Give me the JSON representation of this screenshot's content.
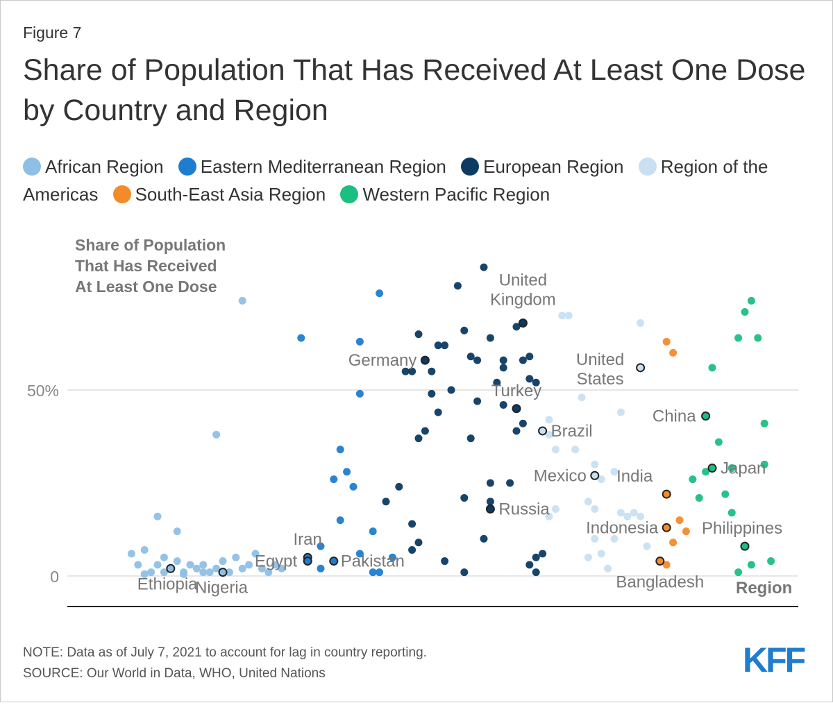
{
  "figure_label": "Figure 7",
  "title": "Share of Population That Has Received At Least One Dose by Country and Region",
  "legend": [
    {
      "label": "African Region",
      "color": "#8ec0e6"
    },
    {
      "label": "Eastern Mediterranean Region",
      "color": "#1f7dd0"
    },
    {
      "label": "European Region",
      "color": "#0d3a61"
    },
    {
      "label": "Region of the Americas",
      "color": "#c8e0f2"
    },
    {
      "label": "South-East Asia Region",
      "color": "#f38b2b"
    },
    {
      "label": "Western Pacific Region",
      "color": "#1bbf82"
    }
  ],
  "note": "NOTE: Data as of July 7, 2021 to account for lag in country reporting.",
  "source": "SOURCE: Our World in Data, WHO, United Nations",
  "logo": "KFF",
  "chart_data": {
    "type": "scatter",
    "title": "Share of Population That Has Received At Least One Dose by Country and Region",
    "ylabel": "Share of Population That Has Received At Least One Dose",
    "xlabel": "Region",
    "ylim": [
      0,
      85
    ],
    "xlim": [
      0,
      100
    ],
    "yticks": [
      {
        "value": 0,
        "label": "0"
      },
      {
        "value": 50,
        "label": "50%"
      }
    ],
    "series": [
      {
        "name": "African Region",
        "color": "#8ec0e6",
        "points": [
          {
            "x": 18,
            "y": 74
          },
          {
            "x": 14,
            "y": 38
          },
          {
            "x": 5,
            "y": 16
          },
          {
            "x": 8,
            "y": 12
          },
          {
            "x": 1,
            "y": 6
          },
          {
            "x": 2,
            "y": 3
          },
          {
            "x": 3,
            "y": 7
          },
          {
            "x": 4,
            "y": 1
          },
          {
            "x": 5,
            "y": 3
          },
          {
            "x": 6,
            "y": 5
          },
          {
            "x": 7,
            "y": 2
          },
          {
            "x": 8,
            "y": 4
          },
          {
            "x": 9,
            "y": 1
          },
          {
            "x": 10,
            "y": 3
          },
          {
            "x": 11,
            "y": 2
          },
          {
            "x": 12,
            "y": 3
          },
          {
            "x": 13,
            "y": 1
          },
          {
            "x": 14,
            "y": 2
          },
          {
            "x": 15,
            "y": 4
          },
          {
            "x": 16,
            "y": 1
          },
          {
            "x": 17,
            "y": 5
          },
          {
            "x": 18,
            "y": 2
          },
          {
            "x": 19,
            "y": 3
          },
          {
            "x": 20,
            "y": 6
          },
          {
            "x": 21,
            "y": 2
          },
          {
            "x": 22,
            "y": 1
          },
          {
            "x": 23,
            "y": 3
          },
          {
            "x": 24,
            "y": 2
          },
          {
            "x": 3,
            "y": 0.5
          },
          {
            "x": 9,
            "y": 0.5
          },
          {
            "x": 12,
            "y": 1
          },
          {
            "x": 6,
            "y": 1
          }
        ]
      },
      {
        "name": "Eastern Mediterranean Region",
        "color": "#1f7dd0",
        "points": [
          {
            "x": 39,
            "y": 76
          },
          {
            "x": 27,
            "y": 64
          },
          {
            "x": 36,
            "y": 63
          },
          {
            "x": 36,
            "y": 49
          },
          {
            "x": 33,
            "y": 34
          },
          {
            "x": 34,
            "y": 28
          },
          {
            "x": 32,
            "y": 26
          },
          {
            "x": 35,
            "y": 24
          },
          {
            "x": 33,
            "y": 15
          },
          {
            "x": 38,
            "y": 12
          },
          {
            "x": 30,
            "y": 8
          },
          {
            "x": 36,
            "y": 6
          },
          {
            "x": 41,
            "y": 5
          },
          {
            "x": 30,
            "y": 2
          },
          {
            "x": 38,
            "y": 1
          },
          {
            "x": 39,
            "y": 1
          }
        ]
      },
      {
        "name": "European Region",
        "color": "#0d3a61",
        "points": [
          {
            "x": 55,
            "y": 83
          },
          {
            "x": 51,
            "y": 78
          },
          {
            "x": 45,
            "y": 65
          },
          {
            "x": 48,
            "y": 62
          },
          {
            "x": 49,
            "y": 62
          },
          {
            "x": 52,
            "y": 66
          },
          {
            "x": 53,
            "y": 59
          },
          {
            "x": 54,
            "y": 58
          },
          {
            "x": 56,
            "y": 64
          },
          {
            "x": 58,
            "y": 58
          },
          {
            "x": 60,
            "y": 67
          },
          {
            "x": 61,
            "y": 58
          },
          {
            "x": 62,
            "y": 59
          },
          {
            "x": 58,
            "y": 56
          },
          {
            "x": 57,
            "y": 52
          },
          {
            "x": 62,
            "y": 53
          },
          {
            "x": 63,
            "y": 52
          },
          {
            "x": 43,
            "y": 55
          },
          {
            "x": 44,
            "y": 55
          },
          {
            "x": 47,
            "y": 55
          },
          {
            "x": 50,
            "y": 50
          },
          {
            "x": 47,
            "y": 49
          },
          {
            "x": 54,
            "y": 47
          },
          {
            "x": 58,
            "y": 46
          },
          {
            "x": 48,
            "y": 44
          },
          {
            "x": 46,
            "y": 39
          },
          {
            "x": 45,
            "y": 37
          },
          {
            "x": 53,
            "y": 37
          },
          {
            "x": 61,
            "y": 41
          },
          {
            "x": 60,
            "y": 39
          },
          {
            "x": 56,
            "y": 25
          },
          {
            "x": 59,
            "y": 25
          },
          {
            "x": 42,
            "y": 24
          },
          {
            "x": 40,
            "y": 20
          },
          {
            "x": 52,
            "y": 21
          },
          {
            "x": 56,
            "y": 20
          },
          {
            "x": 44,
            "y": 14
          },
          {
            "x": 45,
            "y": 9
          },
          {
            "x": 44,
            "y": 7
          },
          {
            "x": 55,
            "y": 10
          },
          {
            "x": 49,
            "y": 4
          },
          {
            "x": 52,
            "y": 1
          },
          {
            "x": 62,
            "y": 3
          },
          {
            "x": 64,
            "y": 6
          },
          {
            "x": 63,
            "y": 5
          },
          {
            "x": 63,
            "y": 1
          }
        ]
      },
      {
        "name": "Region of the Americas",
        "color": "#c8e0f2",
        "points": [
          {
            "x": 67,
            "y": 70
          },
          {
            "x": 68,
            "y": 70
          },
          {
            "x": 79,
            "y": 68
          },
          {
            "x": 70,
            "y": 48
          },
          {
            "x": 76,
            "y": 44
          },
          {
            "x": 65,
            "y": 42
          },
          {
            "x": 65,
            "y": 38
          },
          {
            "x": 66,
            "y": 34
          },
          {
            "x": 69,
            "y": 34
          },
          {
            "x": 72,
            "y": 30
          },
          {
            "x": 75,
            "y": 28
          },
          {
            "x": 73,
            "y": 26
          },
          {
            "x": 66,
            "y": 18
          },
          {
            "x": 65,
            "y": 16
          },
          {
            "x": 71,
            "y": 20
          },
          {
            "x": 72,
            "y": 18
          },
          {
            "x": 76,
            "y": 17
          },
          {
            "x": 77,
            "y": 16
          },
          {
            "x": 78,
            "y": 17
          },
          {
            "x": 79,
            "y": 16
          },
          {
            "x": 72,
            "y": 10
          },
          {
            "x": 75,
            "y": 10
          },
          {
            "x": 80,
            "y": 8
          },
          {
            "x": 71,
            "y": 5
          },
          {
            "x": 73,
            "y": 6
          },
          {
            "x": 74,
            "y": 2
          }
        ]
      },
      {
        "name": "South-East Asia Region",
        "color": "#f38b2b",
        "points": [
          {
            "x": 83,
            "y": 63
          },
          {
            "x": 84,
            "y": 60
          },
          {
            "x": 85,
            "y": 15
          },
          {
            "x": 86,
            "y": 12
          },
          {
            "x": 84,
            "y": 9
          },
          {
            "x": 83,
            "y": 3
          }
        ]
      },
      {
        "name": "Western Pacific Region",
        "color": "#1bbf82",
        "points": [
          {
            "x": 96,
            "y": 74
          },
          {
            "x": 95,
            "y": 71
          },
          {
            "x": 94,
            "y": 64
          },
          {
            "x": 97,
            "y": 64
          },
          {
            "x": 90,
            "y": 56
          },
          {
            "x": 98,
            "y": 41
          },
          {
            "x": 91,
            "y": 36
          },
          {
            "x": 87,
            "y": 26
          },
          {
            "x": 89,
            "y": 28
          },
          {
            "x": 93,
            "y": 29
          },
          {
            "x": 98,
            "y": 30
          },
          {
            "x": 88,
            "y": 21
          },
          {
            "x": 92,
            "y": 22
          },
          {
            "x": 93,
            "y": 17
          },
          {
            "x": 96,
            "y": 3
          },
          {
            "x": 94,
            "y": 1
          },
          {
            "x": 99,
            "y": 4
          }
        ]
      }
    ],
    "annotations": [
      {
        "label": "United Kingdom",
        "series": "European Region",
        "x": 61,
        "y": 68
      },
      {
        "label": "Germany",
        "series": "European Region",
        "x": 46,
        "y": 58
      },
      {
        "label": "Turkey",
        "series": "European Region",
        "x": 60,
        "y": 45
      },
      {
        "label": "Russia",
        "series": "European Region",
        "x": 56,
        "y": 18
      },
      {
        "label": "United States",
        "series": "Region of the Americas",
        "x": 79,
        "y": 56
      },
      {
        "label": "Brazil",
        "series": "Region of the Americas",
        "x": 64,
        "y": 39
      },
      {
        "label": "Mexico",
        "series": "Region of the Americas",
        "x": 72,
        "y": 27
      },
      {
        "label": "China",
        "series": "Western Pacific Region",
        "x": 89,
        "y": 43
      },
      {
        "label": "Japan",
        "series": "Western Pacific Region",
        "x": 90,
        "y": 29
      },
      {
        "label": "Philippines",
        "series": "Western Pacific Region",
        "x": 95,
        "y": 8
      },
      {
        "label": "India",
        "series": "South-East Asia Region",
        "x": 83,
        "y": 22
      },
      {
        "label": "Indonesia",
        "series": "South-East Asia Region",
        "x": 83,
        "y": 13
      },
      {
        "label": "Bangladesh",
        "series": "South-East Asia Region",
        "x": 82,
        "y": 4
      },
      {
        "label": "Iran",
        "series": "Eastern Mediterranean Region",
        "x": 28,
        "y": 5
      },
      {
        "label": "Pakistan",
        "series": "Eastern Mediterranean Region",
        "x": 32,
        "y": 4
      },
      {
        "label": "Egypt",
        "series": "Eastern Mediterranean Region",
        "x": 28,
        "y": 4
      },
      {
        "label": "Ethiopia",
        "series": "African Region",
        "x": 7,
        "y": 2
      },
      {
        "label": "Nigeria",
        "series": "African Region",
        "x": 15,
        "y": 1
      }
    ]
  }
}
